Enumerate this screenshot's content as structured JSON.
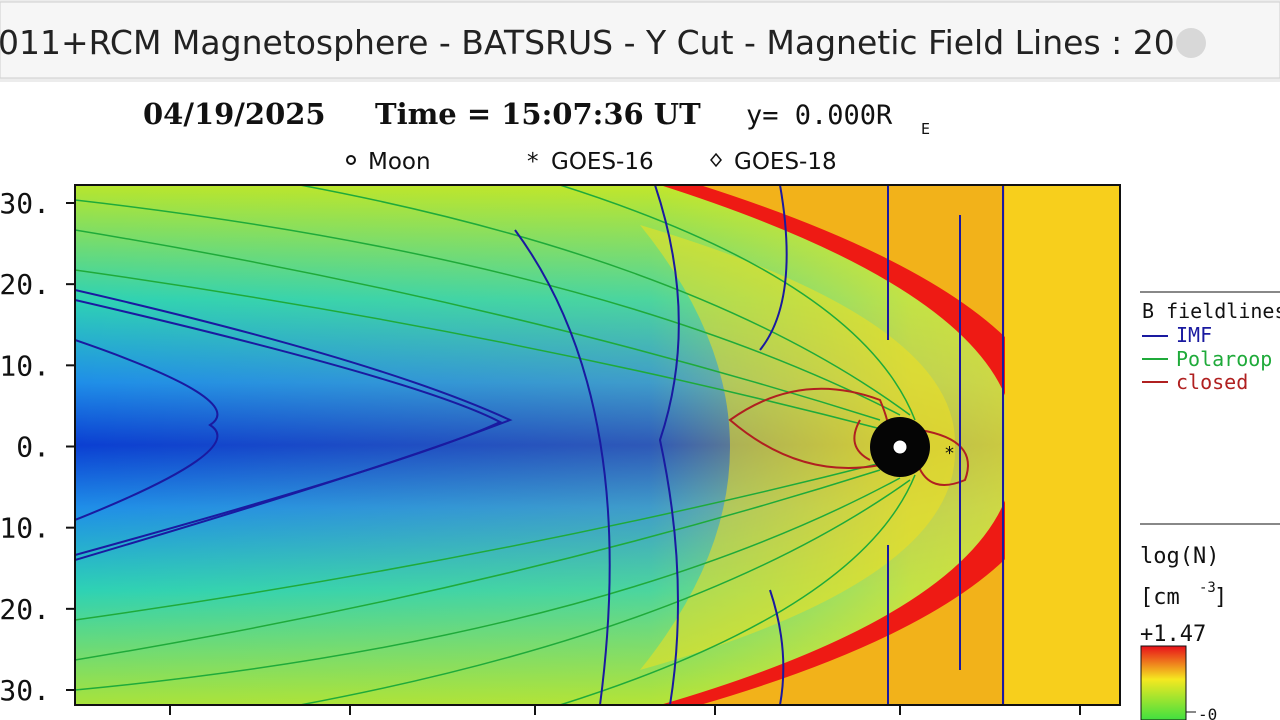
{
  "header": {
    "title": "011+RCM Magnetosphere - BATSRUS - Y Cut - Magnetic Field Lines : 20"
  },
  "plot": {
    "date": "04/19/2025",
    "time": "Time = 15:07:36 UT",
    "position": "y= 0.000R",
    "position_sub": "E",
    "markers": [
      "Moon",
      "GOES-16",
      "GOES-18"
    ],
    "y_tick_labels": [
      "30.",
      "20.",
      "10.",
      "0.",
      "10.",
      "20.",
      "30."
    ],
    "fieldlines": {
      "title": "B fieldlines",
      "items": [
        "IMF",
        "Polaroop",
        "closed"
      ]
    },
    "colorbar": {
      "title": "log(N)",
      "unit": "[cm",
      "unit_sup": "-3",
      "unit_end": "]",
      "max_label": "+1.47",
      "min_label": "-0"
    }
  }
}
